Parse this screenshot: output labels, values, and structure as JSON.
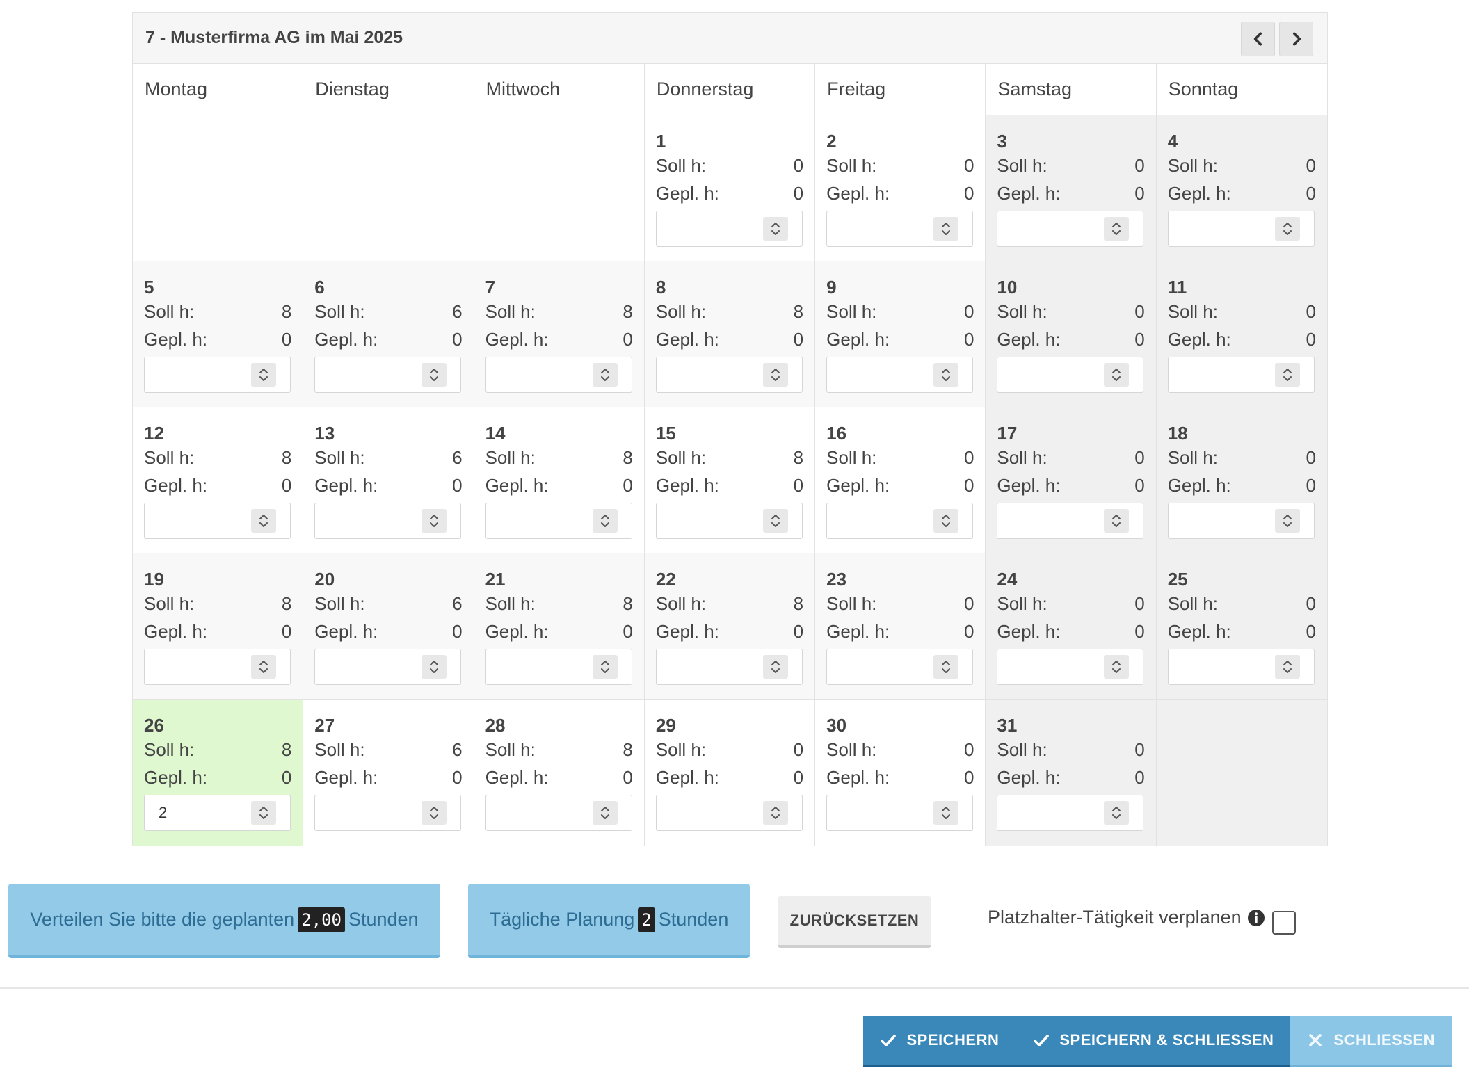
{
  "calendar": {
    "title": "7 - Musterfirma AG im Mai 2025",
    "weekdays": [
      "Montag",
      "Dienstag",
      "Mittwoch",
      "Donnerstag",
      "Freitag",
      "Samstag",
      "Sonntag"
    ],
    "soll_label": "Soll h:",
    "gepl_label": "Gepl. h:",
    "days": [
      {
        "day": "1",
        "soll": "0",
        "gepl": "0",
        "input": ""
      },
      {
        "day": "2",
        "soll": "0",
        "gepl": "0",
        "input": ""
      },
      {
        "day": "3",
        "soll": "0",
        "gepl": "0",
        "input": ""
      },
      {
        "day": "4",
        "soll": "0",
        "gepl": "0",
        "input": ""
      },
      {
        "day": "5",
        "soll": "8",
        "gepl": "0",
        "input": ""
      },
      {
        "day": "6",
        "soll": "6",
        "gepl": "0",
        "input": ""
      },
      {
        "day": "7",
        "soll": "8",
        "gepl": "0",
        "input": ""
      },
      {
        "day": "8",
        "soll": "8",
        "gepl": "0",
        "input": ""
      },
      {
        "day": "9",
        "soll": "0",
        "gepl": "0",
        "input": ""
      },
      {
        "day": "10",
        "soll": "0",
        "gepl": "0",
        "input": ""
      },
      {
        "day": "11",
        "soll": "0",
        "gepl": "0",
        "input": ""
      },
      {
        "day": "12",
        "soll": "8",
        "gepl": "0",
        "input": ""
      },
      {
        "day": "13",
        "soll": "6",
        "gepl": "0",
        "input": ""
      },
      {
        "day": "14",
        "soll": "8",
        "gepl": "0",
        "input": ""
      },
      {
        "day": "15",
        "soll": "8",
        "gepl": "0",
        "input": ""
      },
      {
        "day": "16",
        "soll": "0",
        "gepl": "0",
        "input": ""
      },
      {
        "day": "17",
        "soll": "0",
        "gepl": "0",
        "input": ""
      },
      {
        "day": "18",
        "soll": "0",
        "gepl": "0",
        "input": ""
      },
      {
        "day": "19",
        "soll": "8",
        "gepl": "0",
        "input": ""
      },
      {
        "day": "20",
        "soll": "6",
        "gepl": "0",
        "input": ""
      },
      {
        "day": "21",
        "soll": "8",
        "gepl": "0",
        "input": ""
      },
      {
        "day": "22",
        "soll": "8",
        "gepl": "0",
        "input": ""
      },
      {
        "day": "23",
        "soll": "0",
        "gepl": "0",
        "input": ""
      },
      {
        "day": "24",
        "soll": "0",
        "gepl": "0",
        "input": ""
      },
      {
        "day": "25",
        "soll": "0",
        "gepl": "0",
        "input": ""
      },
      {
        "day": "26",
        "soll": "8",
        "gepl": "0",
        "input": "2"
      },
      {
        "day": "27",
        "soll": "6",
        "gepl": "0",
        "input": ""
      },
      {
        "day": "28",
        "soll": "8",
        "gepl": "0",
        "input": ""
      },
      {
        "day": "29",
        "soll": "0",
        "gepl": "0",
        "input": ""
      },
      {
        "day": "30",
        "soll": "0",
        "gepl": "0",
        "input": ""
      },
      {
        "day": "31",
        "soll": "0",
        "gepl": "0",
        "input": ""
      }
    ],
    "highlight_day": "26",
    "highlight_color": "#dff8d0"
  },
  "actions": {
    "distribute_prefix": "Verteilen Sie bitte die geplanten",
    "distribute_value": "2,00",
    "distribute_suffix": "Stunden",
    "daily_prefix": "Tägliche Planung",
    "daily_value": "2",
    "daily_suffix": "Stunden",
    "reset_label": "ZURÜCKSETZEN",
    "placeholder_label": "Platzhalter-Tätigkeit verplanen"
  },
  "footer": {
    "save_label": "SPEICHERN",
    "save_close_label": "SPEICHERN & SCHLIESSEN",
    "close_label": "SCHLIESSEN"
  },
  "colors": {
    "primary": "#3a87ba",
    "info": "#92cae8",
    "today": "#dff8d0"
  },
  "icons": [
    "chevron-left-icon",
    "chevron-right-icon",
    "spinner-icon",
    "info-circle-icon",
    "check-icon",
    "times-icon"
  ]
}
